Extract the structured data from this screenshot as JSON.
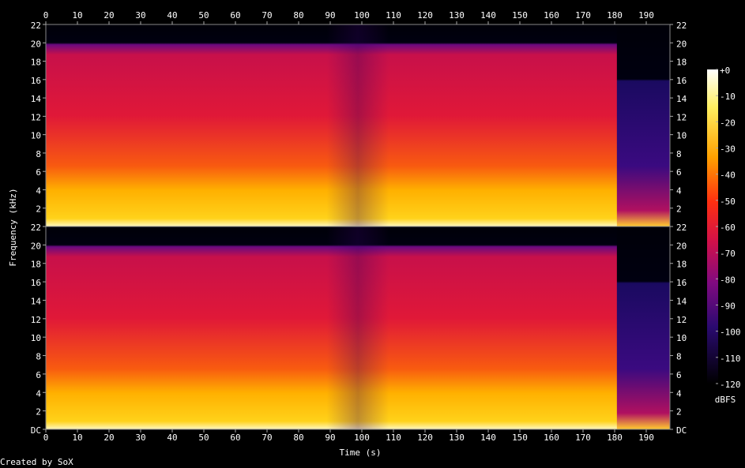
{
  "chart_data": {
    "type": "spectrogram",
    "xlabel": "Time (s)",
    "ylabel": "Frequency (kHz)",
    "xlim": [
      0,
      197.5
    ],
    "xticks": [
      0,
      10,
      20,
      30,
      40,
      50,
      60,
      70,
      80,
      90,
      100,
      110,
      120,
      130,
      140,
      150,
      160,
      170,
      180,
      190
    ],
    "panels": [
      {
        "ylim": [
          0,
          22
        ],
        "yticks": [
          2,
          4,
          6,
          8,
          10,
          12,
          14,
          16,
          18,
          20,
          22
        ]
      },
      {
        "ylim": [
          0,
          22
        ],
        "yticks": [
          {
            "value": 0,
            "label": "DC"
          },
          2,
          4,
          6,
          8,
          10,
          12,
          14,
          16,
          18,
          20,
          22
        ]
      }
    ],
    "colorbar": {
      "label": "dBFS",
      "lim": [
        -120,
        0
      ],
      "ticks": [
        {
          "value": 0,
          "label": "+0"
        },
        -10,
        -20,
        -30,
        -40,
        -50,
        -60,
        -70,
        -80,
        -90,
        -100,
        -110,
        -120
      ]
    },
    "footer": "Created by SoX"
  }
}
